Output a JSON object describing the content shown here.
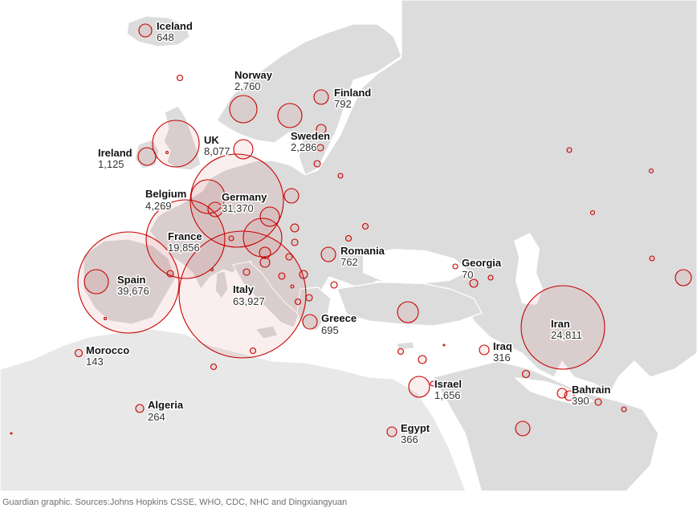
{
  "source": "Guardian graphic. Sources:Johns Hopkins CSSE, WHO, CDC, NHC and Dingxiangyuan",
  "colors": {
    "land": "#dcdcdc",
    "bubble_stroke": "#c70000",
    "background": "#ffffff"
  },
  "labels": [
    {
      "id": "iceland",
      "name": "Iceland",
      "value": "648"
    },
    {
      "id": "norway",
      "name": "Norway",
      "value": "2,760"
    },
    {
      "id": "finland",
      "name": "Finland",
      "value": "792"
    },
    {
      "id": "sweden",
      "name": "Sweden",
      "value": "2,286"
    },
    {
      "id": "uk",
      "name": "UK",
      "value": "8,077"
    },
    {
      "id": "ireland",
      "name": "Ireland",
      "value": "1,125"
    },
    {
      "id": "belgium",
      "name": "Belgium",
      "value": "4,269"
    },
    {
      "id": "germany",
      "name": "Germany",
      "value": "31,370"
    },
    {
      "id": "france",
      "name": "France",
      "value": "19,856"
    },
    {
      "id": "spain",
      "name": "Spain",
      "value": "39,676"
    },
    {
      "id": "italy",
      "name": "Italy",
      "value": "63,927"
    },
    {
      "id": "romania",
      "name": "Romania",
      "value": "762"
    },
    {
      "id": "greece",
      "name": "Greece",
      "value": "695"
    },
    {
      "id": "georgia",
      "name": "Georgia",
      "value": "70"
    },
    {
      "id": "iran",
      "name": "Iran",
      "value": "24,811"
    },
    {
      "id": "iraq",
      "name": "Iraq",
      "value": "316"
    },
    {
      "id": "bahrain",
      "name": "Bahrain",
      "value": "390"
    },
    {
      "id": "israel",
      "name": "Israel",
      "value": "1,656"
    },
    {
      "id": "egypt",
      "name": "Egypt",
      "value": "366"
    },
    {
      "id": "morocco",
      "name": "Morocco",
      "value": "143"
    },
    {
      "id": "algeria",
      "name": "Algeria",
      "value": "264"
    }
  ]
}
